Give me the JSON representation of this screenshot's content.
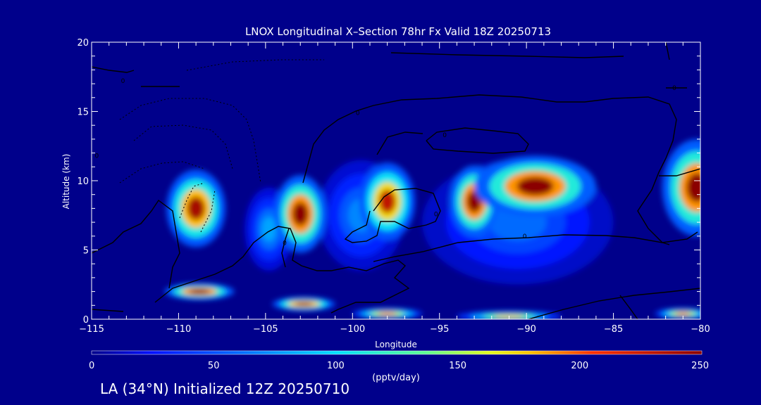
{
  "chart_data": {
    "type": "heatmap",
    "title": "LNOX Longitudinal X–Section 78hr  Fx Valid 18Z 20250713",
    "xlabel": "Longitude",
    "ylabel": "Altitude (km)",
    "xlim": [
      -115,
      -80
    ],
    "ylim": [
      0,
      20
    ],
    "x_ticks": [
      -115,
      -110,
      -105,
      -100,
      -95,
      -90,
      -85,
      -80
    ],
    "x_tick_labels": [
      "−115",
      "−110",
      "−105",
      "−100",
      "−95",
      "−90",
      "−85",
      "−80"
    ],
    "y_ticks": [
      0,
      5,
      10,
      15,
      20
    ],
    "y_tick_labels": [
      "0",
      "5",
      "10",
      "15",
      "20"
    ],
    "colorbar": {
      "label": "(pptv/day)",
      "range": [
        0,
        250
      ],
      "ticks": [
        0,
        50,
        100,
        150,
        200,
        250
      ],
      "tick_labels": [
        "0",
        "50",
        "100",
        "150",
        "200",
        "250"
      ]
    },
    "heat_cells": [
      {
        "lon": -109,
        "alt": 8.0,
        "value": 240,
        "lon_halfwidth": 1.7,
        "alt_halfwidth": 2.8
      },
      {
        "lon": -103,
        "alt": 7.6,
        "value": 250,
        "lon_halfwidth": 1.5,
        "alt_halfwidth": 2.8
      },
      {
        "lon": -104.8,
        "alt": 6.5,
        "value": 80,
        "lon_halfwidth": 1.4,
        "alt_halfwidth": 3.0
      },
      {
        "lon": -98,
        "alt": 8.5,
        "value": 230,
        "lon_halfwidth": 1.6,
        "alt_halfwidth": 2.8
      },
      {
        "lon": -99.5,
        "alt": 7.5,
        "value": 70,
        "lon_halfwidth": 2.5,
        "alt_halfwidth": 4.0
      },
      {
        "lon": -93,
        "alt": 8.5,
        "value": 250,
        "lon_halfwidth": 1.4,
        "alt_halfwidth": 2.6
      },
      {
        "lon": -89.5,
        "alt": 9.6,
        "value": 250,
        "lon_halfwidth": 3.5,
        "alt_halfwidth": 2.2
      },
      {
        "lon": -90.5,
        "alt": 7.0,
        "value": 60,
        "lon_halfwidth": 5.5,
        "alt_halfwidth": 4.5
      },
      {
        "lon": -80.2,
        "alt": 9.5,
        "value": 250,
        "lon_halfwidth": 2.0,
        "alt_halfwidth": 3.5
      },
      {
        "lon": -108.8,
        "alt": 2.0,
        "value": 250,
        "lon_halfwidth": 2.0,
        "alt_halfwidth": 0.6
      },
      {
        "lon": -102.8,
        "alt": 1.1,
        "value": 240,
        "lon_halfwidth": 1.8,
        "alt_halfwidth": 0.5
      },
      {
        "lon": -98,
        "alt": 0.4,
        "value": 200,
        "lon_halfwidth": 2.0,
        "alt_halfwidth": 0.4
      },
      {
        "lon": -91,
        "alt": 0.2,
        "value": 180,
        "lon_halfwidth": 3.0,
        "alt_halfwidth": 0.4
      },
      {
        "lon": -81,
        "alt": 0.4,
        "value": 200,
        "lon_halfwidth": 1.6,
        "alt_halfwidth": 0.4
      }
    ],
    "contour_labels": [
      {
        "text": "0",
        "lon": -95.2,
        "alt": 7.6
      },
      {
        "text": "0",
        "lon": -90.1,
        "alt": 6.0
      },
      {
        "text": "0",
        "lon": -103.9,
        "alt": 5.5
      },
      {
        "text": "0",
        "lon": -94.7,
        "alt": 13.3
      },
      {
        "text": "0",
        "lon": -114.7,
        "alt": 11.8
      },
      {
        "text": "0",
        "lon": -99.7,
        "alt": 14.9
      },
      {
        "text": "0",
        "lon": -81.5,
        "alt": 16.7
      },
      {
        "text": "0",
        "lon": -113.2,
        "alt": 17.2
      }
    ],
    "grid": false
  },
  "footer": "LA (34°N) Initialized 12Z 20250710"
}
